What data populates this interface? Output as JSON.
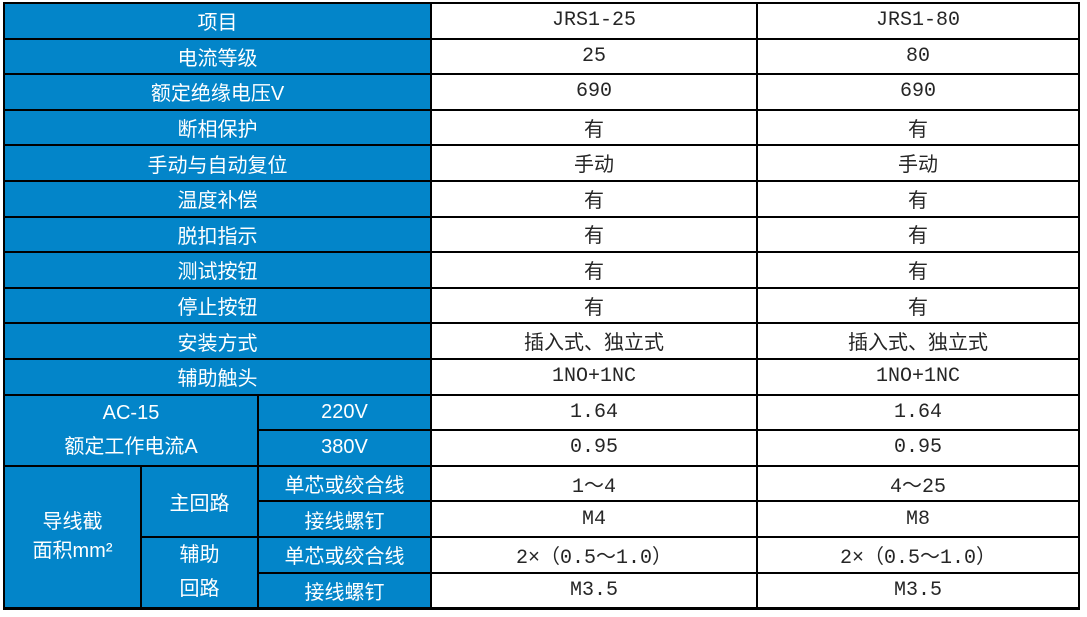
{
  "colors": {
    "header_bg": "#0385C9",
    "header_text": "#FFFFFF",
    "grid_border": "#000000",
    "value_text": "#262626",
    "value_bg": "#FFFFFF"
  },
  "table": {
    "header": {
      "label": "项目",
      "col1": "JRS1-25",
      "col2": "JRS1-80"
    },
    "simple_rows": [
      {
        "label": "电流等级",
        "v1": "25",
        "v2": "80"
      },
      {
        "label": "额定绝缘电压V",
        "v1": "690",
        "v2": "690"
      },
      {
        "label": "断相保护",
        "v1": "有",
        "v2": "有"
      },
      {
        "label": "手动与自动复位",
        "v1": "手动",
        "v2": "手动"
      },
      {
        "label": "温度补偿",
        "v1": "有",
        "v2": "有"
      },
      {
        "label": "脱扣指示",
        "v1": "有",
        "v2": "有"
      },
      {
        "label": "测试按钮",
        "v1": "有",
        "v2": "有"
      },
      {
        "label": "停止按钮",
        "v1": "有",
        "v2": "有"
      },
      {
        "label": "安装方式",
        "v1": "插入式、独立式",
        "v2": "插入式、独立式"
      },
      {
        "label": "辅助触头",
        "v1": "1NO+1NC",
        "v2": "1NO+1NC"
      }
    ],
    "ac15": {
      "label": "AC-15\n额定工作电流A",
      "rows": [
        {
          "sub": "220V",
          "v1": "1.64",
          "v2": "1.64"
        },
        {
          "sub": "380V",
          "v1": "0.95",
          "v2": "0.95"
        }
      ]
    },
    "wire": {
      "label": "导线截\n面积mm²",
      "groups": [
        {
          "label": "主回路",
          "rows": [
            {
              "sub": "单芯或绞合线",
              "v1": "1～4",
              "v2": "4～25"
            },
            {
              "sub": "接线螺钉",
              "v1": "M4",
              "v2": "M8"
            }
          ]
        },
        {
          "label": "辅助\n回路",
          "rows": [
            {
              "sub": "单芯或绞合线",
              "v1": "2×（0.5～1.0）",
              "v2": "2×（0.5～1.0）"
            },
            {
              "sub": "接线螺钉",
              "v1": "M3.5",
              "v2": "M3.5"
            }
          ]
        }
      ]
    }
  }
}
